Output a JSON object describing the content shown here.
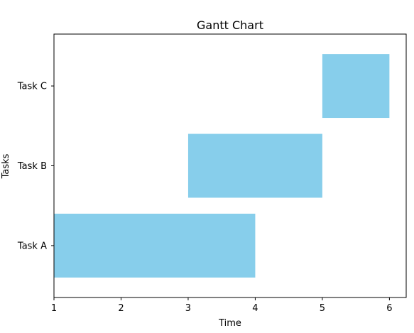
{
  "chart_data": {
    "type": "bar",
    "orientation": "horizontal",
    "title": "Gantt Chart",
    "xlabel": "Time",
    "ylabel": "Tasks",
    "xlim": [
      1,
      6.25
    ],
    "xticks": [
      1,
      2,
      3,
      4,
      5,
      6
    ],
    "categories": [
      "Task A",
      "Task B",
      "Task C"
    ],
    "tasks": [
      {
        "name": "Task A",
        "start": 1,
        "end": 4
      },
      {
        "name": "Task B",
        "start": 3,
        "end": 5
      },
      {
        "name": "Task C",
        "start": 5,
        "end": 6
      }
    ],
    "bar_color": "#87CEEB",
    "grid": false,
    "legend": "none"
  }
}
